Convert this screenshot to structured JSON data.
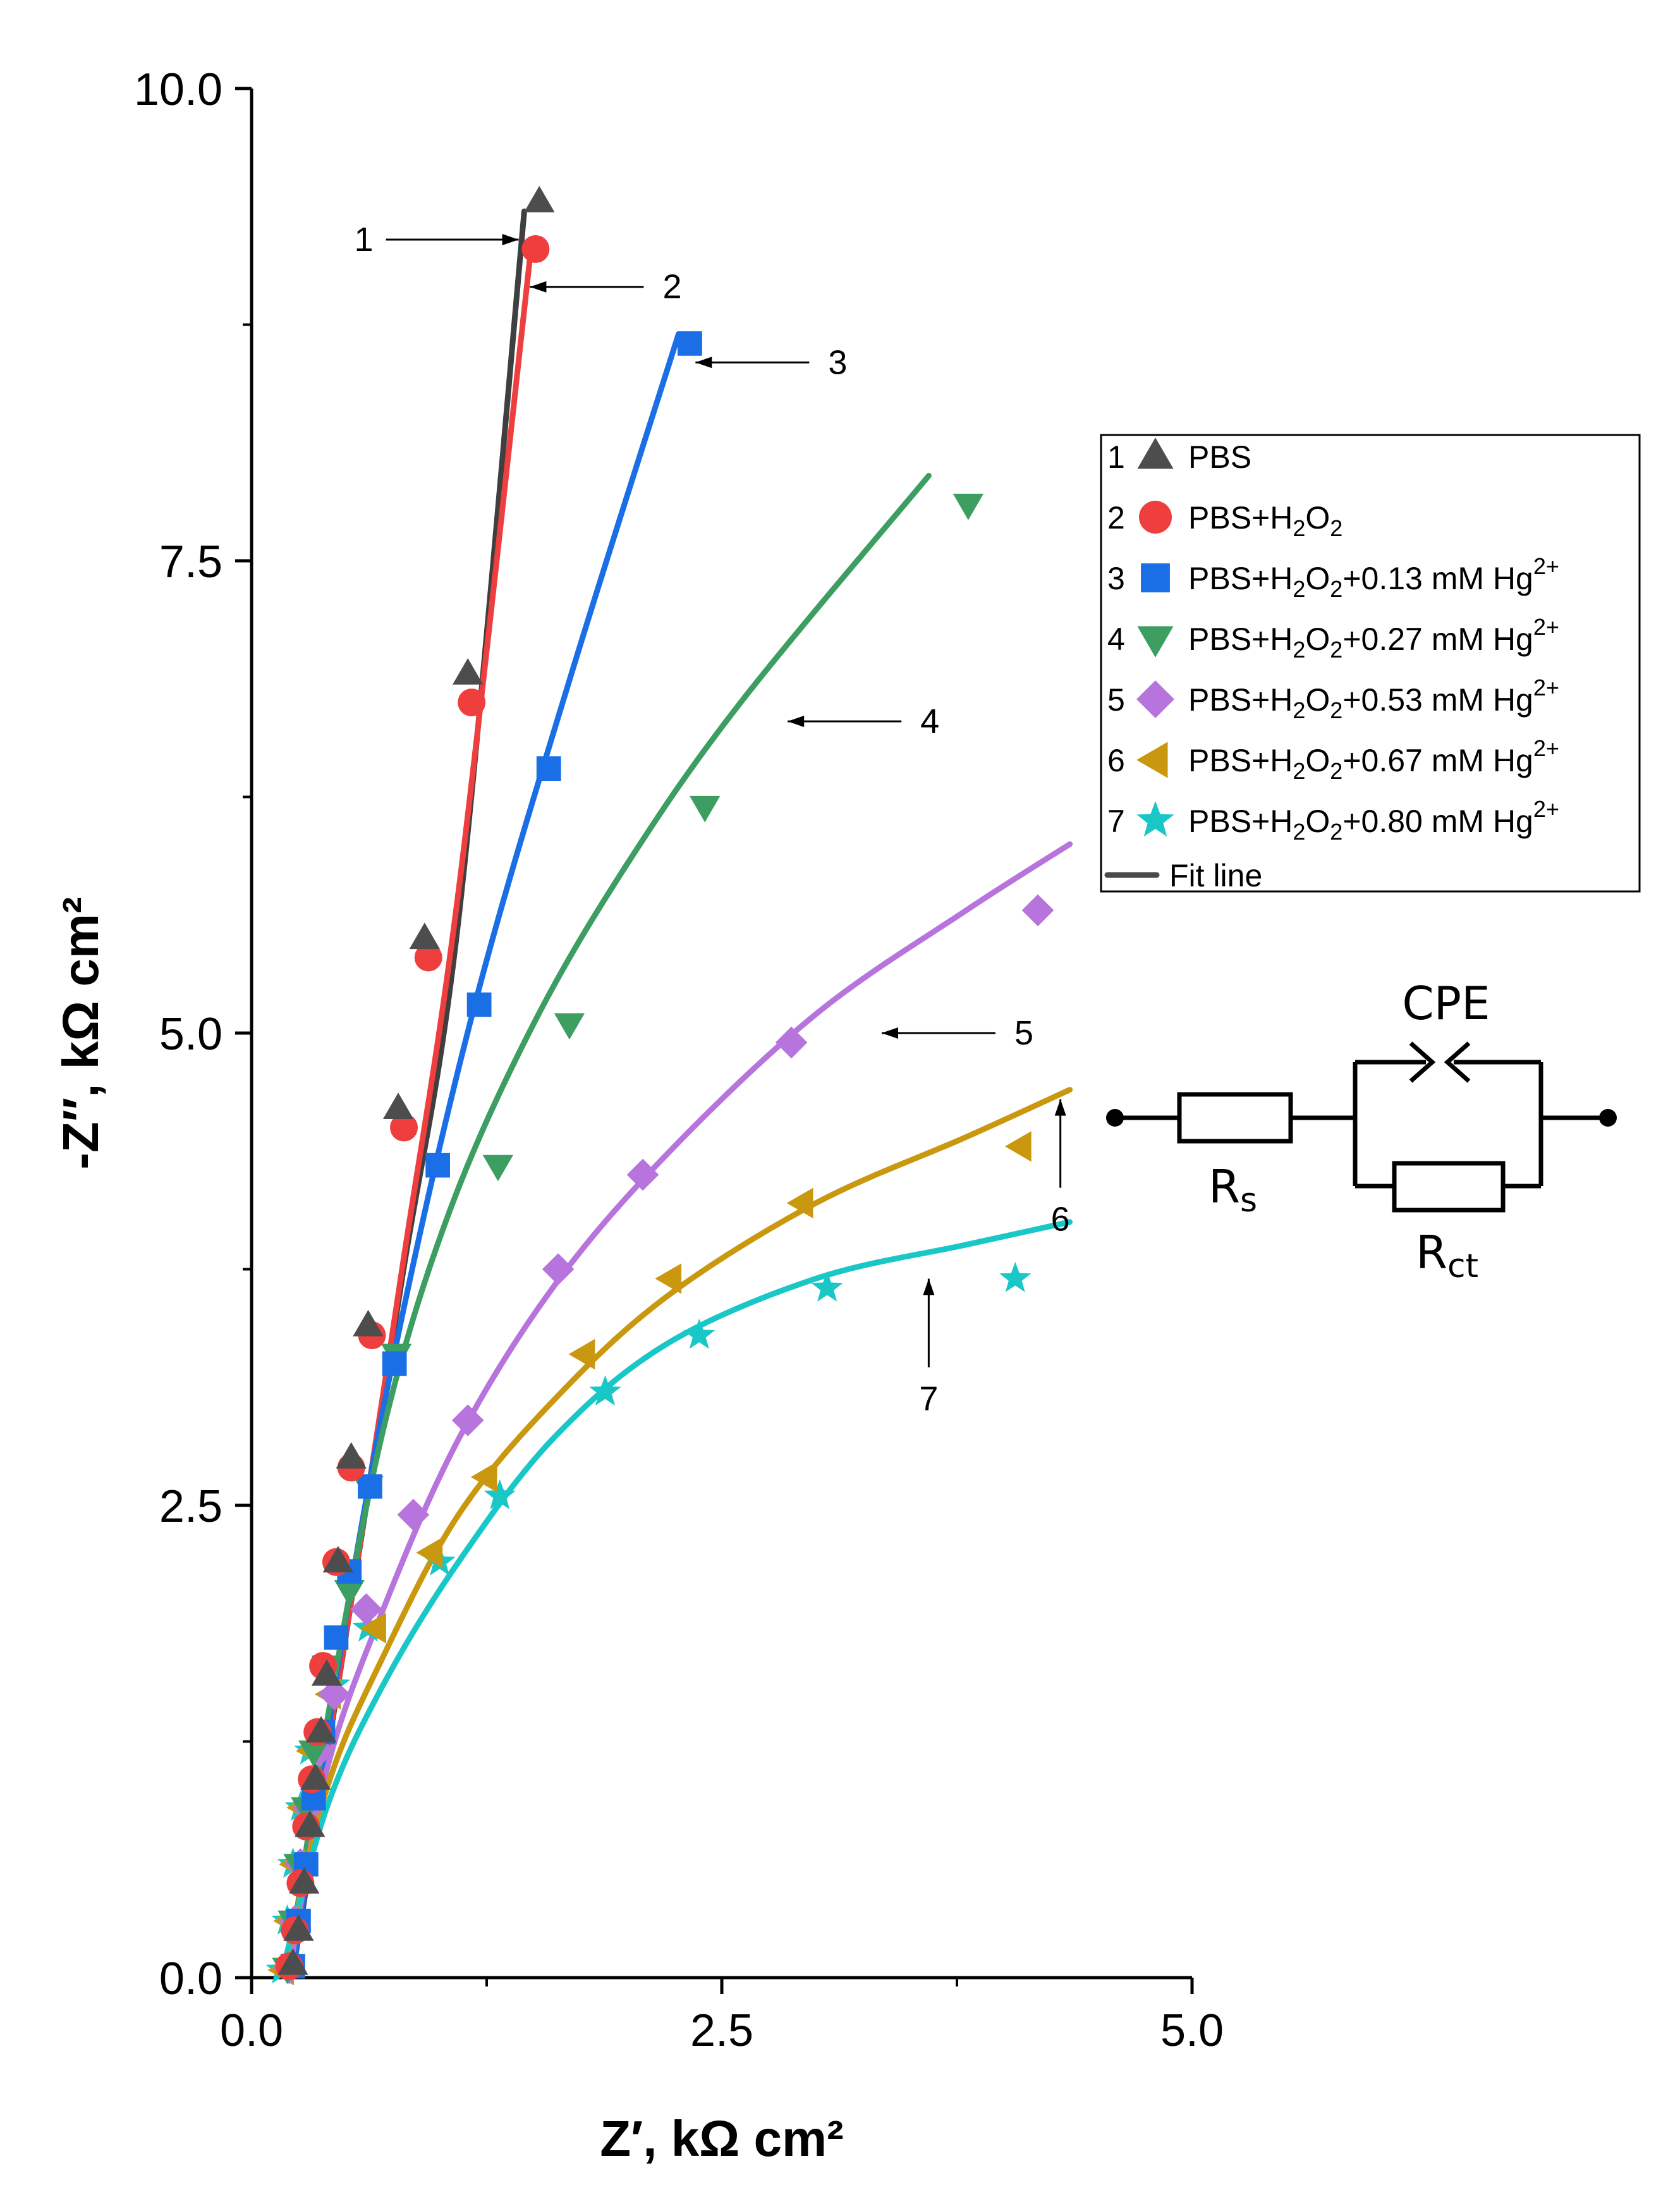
{
  "chart_data": {
    "type": "scatter",
    "title": "",
    "xlabel": "Z′, kΩ cm²",
    "ylabel": "-Z″, kΩ cm²",
    "xlim": [
      0,
      5
    ],
    "ylim": [
      0,
      10
    ],
    "x_ticks": [
      "0.0",
      "2.5",
      "5.0"
    ],
    "y_ticks": [
      "0.0",
      "2.5",
      "5.0",
      "7.5",
      "10.0"
    ],
    "grid": false,
    "legend_position": "right",
    "series": [
      {
        "id": "1",
        "name": "PBS",
        "base": "PBS",
        "conc": "",
        "marker": "triangle-up",
        "color": "#4d4d4d",
        "line_color": "#3f3f3f",
        "points": [
          [
            0.22,
            0.07
          ],
          [
            0.25,
            0.25
          ],
          [
            0.28,
            0.5
          ],
          [
            0.31,
            0.8
          ],
          [
            0.34,
            1.05
          ],
          [
            0.37,
            1.3
          ],
          [
            0.4,
            1.6
          ],
          [
            0.46,
            2.2
          ],
          [
            0.53,
            2.75
          ],
          [
            0.62,
            3.45
          ],
          [
            0.78,
            4.6
          ],
          [
            0.92,
            5.5
          ],
          [
            1.15,
            6.9
          ],
          [
            1.53,
            9.4
          ]
        ],
        "fit": [
          [
            0.22,
            0.03
          ],
          [
            0.5,
            1.8
          ],
          [
            0.8,
            3.7
          ],
          [
            1.1,
            5.6
          ],
          [
            1.45,
            9.35
          ]
        ]
      },
      {
        "id": "2",
        "name": "PBS+H₂O₂",
        "base": "PBS+H",
        "conc": "",
        "marker": "circle",
        "color": "#ef3e3e",
        "line_color": "#ef3e3e",
        "points": [
          [
            0.2,
            0.06
          ],
          [
            0.23,
            0.25
          ],
          [
            0.26,
            0.5
          ],
          [
            0.29,
            0.8
          ],
          [
            0.32,
            1.05
          ],
          [
            0.35,
            1.3
          ],
          [
            0.38,
            1.65
          ],
          [
            0.45,
            2.2
          ],
          [
            0.53,
            2.7
          ],
          [
            0.64,
            3.4
          ],
          [
            0.81,
            4.5
          ],
          [
            0.94,
            5.4
          ],
          [
            1.17,
            6.75
          ],
          [
            1.51,
            9.15
          ]
        ],
        "fit": [
          [
            0.2,
            0.03
          ],
          [
            0.5,
            1.8
          ],
          [
            0.8,
            3.75
          ],
          [
            1.1,
            5.75
          ],
          [
            1.48,
            9.1
          ]
        ]
      },
      {
        "id": "3",
        "name": "PBS+H₂O₂+0.13 mM Hg²⁺",
        "base": "PBS+H",
        "conc": "0.13",
        "marker": "square",
        "color": "#1a6ee6",
        "line_color": "#1a6ee6",
        "points": [
          [
            0.22,
            0.06
          ],
          [
            0.25,
            0.3
          ],
          [
            0.29,
            0.6
          ],
          [
            0.33,
            0.95
          ],
          [
            0.38,
            1.3
          ],
          [
            0.45,
            1.8
          ],
          [
            0.52,
            2.15
          ],
          [
            0.63,
            2.6
          ],
          [
            0.76,
            3.25
          ],
          [
            0.99,
            4.3
          ],
          [
            1.21,
            5.15
          ],
          [
            1.58,
            6.4
          ],
          [
            2.33,
            8.65
          ]
        ],
        "fit": [
          [
            0.22,
            0.03
          ],
          [
            0.5,
            1.9
          ],
          [
            0.8,
            3.5
          ],
          [
            1.2,
            5.2
          ],
          [
            1.7,
            6.9
          ],
          [
            2.27,
            8.7
          ]
        ]
      },
      {
        "id": "4",
        "name": "PBS+H₂O₂+0.27 mM Hg²⁺",
        "base": "PBS+H",
        "conc": "0.27",
        "marker": "triangle-down",
        "color": "#3d9e62",
        "line_color": "#3d9e62",
        "points": [
          [
            0.19,
            0.05
          ],
          [
            0.22,
            0.3
          ],
          [
            0.25,
            0.6
          ],
          [
            0.29,
            0.9
          ],
          [
            0.33,
            1.2
          ],
          [
            0.4,
            1.65
          ],
          [
            0.52,
            2.05
          ],
          [
            0.62,
            2.6
          ],
          [
            0.77,
            3.3
          ],
          [
            1.31,
            4.3
          ],
          [
            1.69,
            5.05
          ],
          [
            2.41,
            6.2
          ],
          [
            3.81,
            7.8
          ]
        ],
        "fit": [
          [
            0.19,
            0.02
          ],
          [
            0.4,
            1.35
          ],
          [
            0.7,
            2.9
          ],
          [
            1.05,
            4.05
          ],
          [
            1.5,
            5.05
          ],
          [
            2.0,
            5.9
          ],
          [
            2.6,
            6.75
          ],
          [
            3.6,
            7.95
          ]
        ]
      },
      {
        "id": "5",
        "name": "PBS+H₂O₂+0.53 mM Hg²⁺",
        "base": "PBS+H",
        "conc": "0.53",
        "marker": "diamond",
        "color": "#b774dd",
        "line_color": "#b774dd",
        "points": [
          [
            0.2,
            0.05
          ],
          [
            0.23,
            0.3
          ],
          [
            0.26,
            0.6
          ],
          [
            0.3,
            0.9
          ],
          [
            0.36,
            1.2
          ],
          [
            0.44,
            1.5
          ],
          [
            0.61,
            1.95
          ],
          [
            0.86,
            2.45
          ],
          [
            1.15,
            2.95
          ],
          [
            1.63,
            3.75
          ],
          [
            2.08,
            4.25
          ],
          [
            2.87,
            4.95
          ],
          [
            4.18,
            5.65
          ]
        ],
        "fit": [
          [
            0.2,
            0.02
          ],
          [
            0.4,
            1.1
          ],
          [
            0.7,
            1.95
          ],
          [
            1.1,
            2.85
          ],
          [
            1.6,
            3.65
          ],
          [
            2.2,
            4.35
          ],
          [
            3.0,
            5.1
          ],
          [
            3.8,
            5.65
          ],
          [
            4.35,
            6.0
          ]
        ]
      },
      {
        "id": "6",
        "name": "PBS+H₂O₂+0.67 mM Hg²⁺",
        "base": "PBS+H",
        "conc": "0.67",
        "marker": "triangle-left",
        "color": "#c9980e",
        "line_color": "#c9980e",
        "points": [
          [
            0.17,
            0.04
          ],
          [
            0.2,
            0.3
          ],
          [
            0.23,
            0.6
          ],
          [
            0.27,
            0.9
          ],
          [
            0.32,
            1.2
          ],
          [
            0.42,
            1.5
          ],
          [
            0.66,
            1.85
          ],
          [
            0.96,
            2.25
          ],
          [
            1.25,
            2.65
          ],
          [
            1.77,
            3.3
          ],
          [
            2.23,
            3.7
          ],
          [
            2.93,
            4.1
          ],
          [
            4.09,
            4.4
          ]
        ],
        "fit": [
          [
            0.17,
            0.02
          ],
          [
            0.4,
            1.0
          ],
          [
            0.7,
            1.7
          ],
          [
            1.1,
            2.45
          ],
          [
            1.6,
            3.05
          ],
          [
            2.2,
            3.6
          ],
          [
            3.0,
            4.1
          ],
          [
            3.8,
            4.45
          ],
          [
            4.35,
            4.7
          ]
        ]
      },
      {
        "id": "7",
        "name": "PBS+H₂O₂+0.80 mM Hg²⁺",
        "base": "PBS+H",
        "conc": "0.80",
        "marker": "star",
        "color": "#1ac7c7",
        "line_color": "#1ac7c7",
        "points": [
          [
            0.16,
            0.04
          ],
          [
            0.19,
            0.3
          ],
          [
            0.22,
            0.6
          ],
          [
            0.26,
            0.9
          ],
          [
            0.31,
            1.2
          ],
          [
            0.44,
            1.55
          ],
          [
            0.62,
            1.85
          ],
          [
            1.0,
            2.2
          ],
          [
            1.32,
            2.55
          ],
          [
            1.88,
            3.1
          ],
          [
            2.38,
            3.4
          ],
          [
            3.06,
            3.65
          ],
          [
            4.06,
            3.7
          ]
        ],
        "fit": [
          [
            0.16,
            0.02
          ],
          [
            0.4,
            0.9
          ],
          [
            0.7,
            1.55
          ],
          [
            1.1,
            2.2
          ],
          [
            1.6,
            2.85
          ],
          [
            2.2,
            3.35
          ],
          [
            3.0,
            3.7
          ],
          [
            3.8,
            3.88
          ],
          [
            4.35,
            4.0
          ]
        ]
      }
    ],
    "legend_fit_label": "Fit line",
    "annotations": [
      {
        "label": "1",
        "x": 1.42,
        "y": 9.2,
        "text_side": "left"
      },
      {
        "label": "2",
        "x": 1.48,
        "y": 8.95,
        "text_side": "right"
      },
      {
        "label": "3",
        "x": 2.36,
        "y": 8.55,
        "text_side": "right"
      },
      {
        "label": "4",
        "x": 2.85,
        "y": 6.65,
        "text_side": "right"
      },
      {
        "label": "5",
        "x": 3.35,
        "y": 5.0,
        "text_side": "right"
      },
      {
        "label": "6",
        "x": 4.3,
        "y": 4.65,
        "text_side": "below"
      },
      {
        "label": "7",
        "x": 3.6,
        "y": 3.7,
        "text_side": "below"
      }
    ],
    "equivalent_circuit": {
      "cpe_label": "CPE",
      "rs_label": "R",
      "rs_sub": "s",
      "rct_label": "R",
      "rct_sub": "ct"
    }
  }
}
